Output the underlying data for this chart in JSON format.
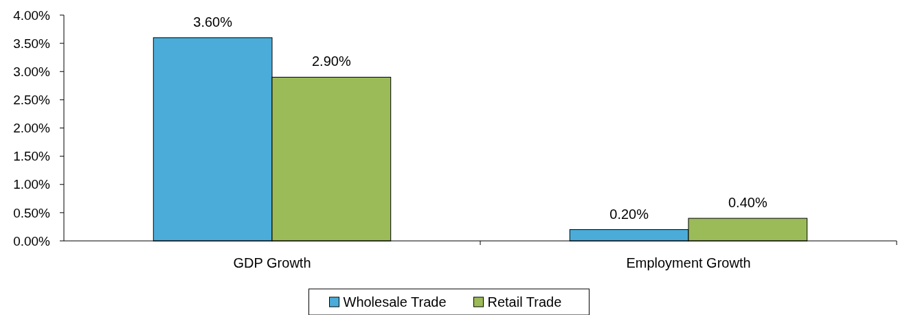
{
  "chart_data": {
    "type": "bar",
    "categories": [
      "GDP Growth",
      "Employment Growth"
    ],
    "series": [
      {
        "name": "Wholesale Trade",
        "color": "#4bacd9",
        "values": [
          3.6,
          0.2
        ],
        "value_labels": [
          "3.60%",
          "0.20%"
        ]
      },
      {
        "name": "Retail Trade",
        "color": "#9bbb59",
        "values": [
          2.9,
          0.4
        ],
        "value_labels": [
          "2.90%",
          "0.40%"
        ]
      }
    ],
    "ylim": [
      0,
      4
    ],
    "yticks": [
      {
        "value": 0,
        "label": "0.00%"
      },
      {
        "value": 0.5,
        "label": "0.50%"
      },
      {
        "value": 1,
        "label": "1.00%"
      },
      {
        "value": 1.5,
        "label": "1.50%"
      },
      {
        "value": 2,
        "label": "2.00%"
      },
      {
        "value": 2.5,
        "label": "2.50%"
      },
      {
        "value": 3,
        "label": "3.00%"
      },
      {
        "value": 3.5,
        "label": "3.50%"
      },
      {
        "value": 4,
        "label": "4.00%"
      }
    ],
    "grid": false,
    "legend": "bottom"
  }
}
